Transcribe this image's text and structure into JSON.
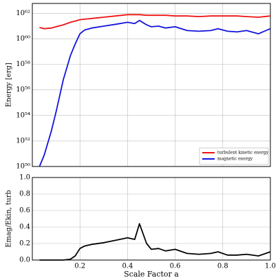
{
  "chart_data": [
    {
      "type": "line",
      "ylabel": "Energy [erg]",
      "y_scale": "log",
      "grid": true,
      "legend": "lower right",
      "x": [
        0.03,
        0.05,
        0.08,
        0.1,
        0.13,
        0.16,
        0.18,
        0.2,
        0.22,
        0.25,
        0.3,
        0.35,
        0.4,
        0.43,
        0.45,
        0.48,
        0.5,
        0.53,
        0.56,
        0.6,
        0.65,
        0.7,
        0.75,
        0.78,
        0.82,
        0.86,
        0.9,
        0.95,
        1.0
      ],
      "series": [
        {
          "name": "turbulent kinetic energy",
          "color": "#ee1111",
          "values": [
            7.9e+60,
            6.3e+60,
            7.1e+60,
            8.9e+60,
            1.26e+61,
            2e+61,
            2.5e+61,
            3.2e+61,
            3.5e+61,
            4e+61,
            5e+61,
            6.3e+61,
            7.9e+61,
            7.9e+61,
            7.9e+61,
            7.1e+61,
            7.1e+61,
            7.1e+61,
            7.1e+61,
            6.3e+61,
            6.3e+61,
            5.6e+61,
            6.3e+61,
            6.3e+61,
            6.3e+61,
            6.3e+61,
            5.6e+61,
            5e+61,
            6.3e+61
          ]
        },
        {
          "name": "magnetic energy",
          "color": "#1111dd",
          "values": [
            1e+50,
            7.9e+50,
            6.3e+52,
            2e+54,
            6.3e+56,
            5e+58,
            4e+59,
            2.5e+60,
            5e+60,
            7.1e+60,
            1e+61,
            1.4e+61,
            2e+61,
            1.6e+61,
            2.8e+61,
            1.26e+61,
            8.9e+60,
            1e+61,
            7.1e+60,
            8.9e+60,
            4.5e+60,
            4e+60,
            4.5e+60,
            6.3e+60,
            4e+60,
            3.5e+60,
            4.5e+60,
            2.5e+60,
            6.3e+60
          ]
        }
      ],
      "xlim": [
        0,
        1
      ],
      "xticks": [
        0.2,
        0.4,
        0.6,
        0.8
      ],
      "ylim": [
        1e+50,
        6e+62
      ],
      "yticks": [
        {
          "value": 1e+50,
          "label": "10⁵⁰"
        },
        {
          "value": 1e+52,
          "label": "10⁵²"
        },
        {
          "value": 1e+54,
          "label": "10⁵⁴"
        },
        {
          "value": 1e+56,
          "label": "10⁵⁶"
        },
        {
          "value": 1e+58,
          "label": "10⁵⁸"
        },
        {
          "value": 1e+60,
          "label": "10⁶⁰"
        },
        {
          "value": 1e+62,
          "label": "10⁶²"
        }
      ]
    },
    {
      "type": "line",
      "ylabel": "Emag/Ekin, turb",
      "xlabel": "Scale Factor a",
      "grid": true,
      "color": "#000000",
      "x": [
        0.03,
        0.05,
        0.08,
        0.1,
        0.13,
        0.16,
        0.18,
        0.2,
        0.22,
        0.25,
        0.3,
        0.35,
        0.4,
        0.43,
        0.45,
        0.48,
        0.5,
        0.53,
        0.56,
        0.6,
        0.65,
        0.7,
        0.75,
        0.78,
        0.82,
        0.86,
        0.9,
        0.95,
        1.0
      ],
      "values": [
        0,
        0,
        0,
        0,
        0,
        0.01,
        0.05,
        0.14,
        0.17,
        0.19,
        0.21,
        0.24,
        0.27,
        0.25,
        0.44,
        0.2,
        0.13,
        0.14,
        0.11,
        0.13,
        0.08,
        0.07,
        0.08,
        0.1,
        0.06,
        0.06,
        0.07,
        0.05,
        0.1
      ],
      "xlim": [
        0,
        1
      ],
      "xticks": [
        0.2,
        0.4,
        0.6,
        0.8,
        {
          "value": 1,
          "label": "1.0"
        }
      ],
      "ylim": [
        0,
        1
      ],
      "yticks": [
        {
          "value": 0,
          "label": "0.0"
        },
        0.2,
        0.4,
        0.6,
        0.8,
        {
          "value": 1,
          "label": "1.0"
        }
      ]
    }
  ]
}
